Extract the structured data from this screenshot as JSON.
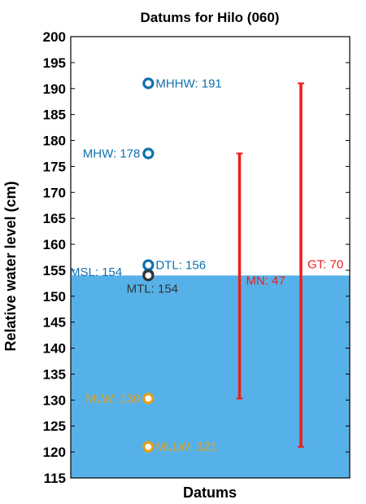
{
  "chart_data": {
    "type": "scatter",
    "title": "Datums for Hilo (060)",
    "xlabel": "Datums",
    "ylabel": "Relative water level (cm)",
    "ylim": [
      115,
      200
    ],
    "yticks": [
      115,
      120,
      125,
      130,
      135,
      140,
      145,
      150,
      155,
      160,
      165,
      170,
      175,
      180,
      185,
      190,
      195,
      200
    ],
    "grid": false,
    "fill_area": {
      "from": 115,
      "to": 154,
      "color": "#56b1e8"
    },
    "points": [
      {
        "label": "MHHW: 191",
        "y": 191,
        "color": "#0f70ad",
        "label_side": "right"
      },
      {
        "label": "MHW: 178",
        "y": 177.5,
        "color": "#0f70ad",
        "label_side": "left"
      },
      {
        "label": "DTL: 156",
        "y": 156,
        "color": "#0f70ad",
        "label_side": "right"
      },
      {
        "label": "MSL: 154",
        "y": 154.2,
        "color": "#0f70ad",
        "label_side": "left-above"
      },
      {
        "label": "MTL: 154",
        "y": 154,
        "color": "#333333",
        "label_side": "below"
      },
      {
        "label": "MLW: 130",
        "y": 130.3,
        "color": "#e3a019",
        "label_side": "left"
      },
      {
        "label": "MLLW: 121",
        "y": 121,
        "color": "#e3a019",
        "label_side": "right"
      }
    ],
    "ranges": [
      {
        "label": "MN: 47",
        "low": 130.3,
        "high": 177.5,
        "color": "#ee1c1c",
        "x_pos": 0.605
      },
      {
        "label": "GT: 70",
        "low": 121,
        "high": 191,
        "color": "#ee1c1c",
        "x_pos": 0.825
      }
    ]
  }
}
